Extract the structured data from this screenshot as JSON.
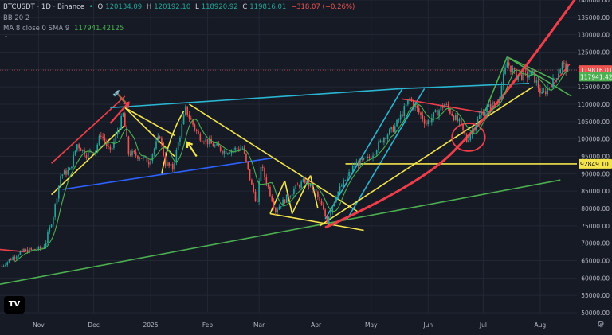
{
  "header": {
    "symbol": "BTCUSDT · 1D · Binance",
    "ohlc": {
      "o_label": "O",
      "o": "120134.09",
      "h_label": "H",
      "h": "120192.10",
      "l_label": "L",
      "l": "118920.92",
      "c_label": "C",
      "c": "119816.01",
      "change": "−318.07 (−0.26%)"
    },
    "bb": "BB 20 2",
    "ma": "MA 8 close 0 SMA 9",
    "ma_value": "117941.42125"
  },
  "colors": {
    "background": "#161a25",
    "grid": "#232734",
    "up": "#26a69a",
    "down": "#ef5350",
    "ma_line": "#4caf50",
    "yellow": "#f4e44c",
    "red": "#ef3e4a",
    "cyan": "#2ab5d1",
    "blue": "#2d62ff",
    "green": "#4caf50"
  },
  "chart_data": {
    "type": "candlestick",
    "y_axis": {
      "ticks": [
        50000,
        55000,
        60000,
        65000,
        70000,
        75000,
        80000,
        85000,
        90000,
        95000,
        100000,
        105000,
        110000,
        115000,
        120000,
        125000,
        130000,
        135000,
        140000
      ],
      "tick_labels": [
        "50000.00",
        "55000.00",
        "60000.00",
        "65000.00",
        "70000.00",
        "75000.00",
        "80000.00",
        "85000.00",
        "90000.00",
        "95000.00",
        "100000.00",
        "105000.00",
        "110000.00",
        "115000.00",
        "120000.00",
        "125000.00",
        "130000.00",
        "135000.00",
        "140000.00"
      ],
      "ylim": [
        50000,
        140000
      ]
    },
    "x_axis": {
      "labels": [
        "Nov",
        "Dec",
        "2025",
        "Feb",
        "Mar",
        "Apr",
        "May",
        "Jun",
        "Jul",
        "Aug"
      ],
      "dates": [
        "2024-11-01",
        "2024-12-01",
        "2025-01-01",
        "2025-02-01",
        "2025-03-01",
        "2025-04-01",
        "2025-05-01",
        "2025-06-01",
        "2025-07-01",
        "2025-08-01"
      ],
      "xlim": [
        "2024-10-11",
        "2025-08-21"
      ]
    },
    "price_anchors": [
      [
        "2024-10-12",
        63500
      ],
      [
        "2024-10-22",
        67500
      ],
      [
        "2024-11-03",
        68500
      ],
      [
        "2024-11-05",
        70500
      ],
      [
        "2024-11-09",
        78000
      ],
      [
        "2024-11-13",
        89500
      ],
      [
        "2024-11-18",
        91000
      ],
      [
        "2024-11-22",
        98500
      ],
      [
        "2024-11-27",
        95500
      ],
      [
        "2024-12-02",
        97000
      ],
      [
        "2024-12-05",
        101500
      ],
      [
        "2024-12-10",
        96000
      ],
      [
        "2024-12-17",
        107000
      ],
      [
        "2024-12-20",
        96000
      ],
      [
        "2024-12-26",
        95000
      ],
      [
        "2024-12-31",
        93500
      ],
      [
        "2025-01-06",
        101000
      ],
      [
        "2025-01-09",
        93000
      ],
      [
        "2025-01-13",
        91500
      ],
      [
        "2025-01-20",
        108500
      ],
      [
        "2025-01-27",
        101000
      ],
      [
        "2025-02-03",
        98500
      ],
      [
        "2025-02-10",
        96500
      ],
      [
        "2025-02-20",
        97500
      ],
      [
        "2025-02-25",
        86500
      ],
      [
        "2025-02-28",
        81500
      ],
      [
        "2025-03-02",
        92500
      ],
      [
        "2025-03-10",
        79500
      ],
      [
        "2025-03-20",
        85500
      ],
      [
        "2025-03-26",
        88000
      ],
      [
        "2025-04-01",
        84500
      ],
      [
        "2025-04-07",
        76500
      ],
      [
        "2025-04-12",
        84000
      ],
      [
        "2025-04-22",
        92500
      ],
      [
        "2025-04-30",
        94500
      ],
      [
        "2025-05-08",
        100500
      ],
      [
        "2025-05-14",
        103500
      ],
      [
        "2025-05-22",
        111500
      ],
      [
        "2025-05-31",
        104500
      ],
      [
        "2025-06-10",
        110000
      ],
      [
        "2025-06-18",
        104500
      ],
      [
        "2025-06-22",
        99500
      ],
      [
        "2025-06-30",
        107500
      ],
      [
        "2025-07-09",
        111000
      ],
      [
        "2025-07-14",
        122000
      ],
      [
        "2025-07-19",
        118000
      ],
      [
        "2025-07-28",
        118500
      ],
      [
        "2025-08-02",
        112500
      ],
      [
        "2025-08-08",
        116500
      ],
      [
        "2025-08-13",
        121500
      ],
      [
        "2025-08-16",
        119816
      ]
    ],
    "moving_average": {
      "name": "MA 8 close 0 SMA 9",
      "last_value": 117941.42125
    },
    "horizontal_levels": [
      {
        "value": 119816.01,
        "label": "119816.01",
        "color": "#ef5350"
      },
      {
        "value": 117941.42,
        "label": "117941.421",
        "color": "#4caf50"
      },
      {
        "value": 92849.1,
        "label": "92849.10",
        "color": "#f4e44c"
      }
    ],
    "drawings": [
      {
        "kind": "line",
        "color": "#ef3e4a",
        "points": [
          [
            "2024-10-11",
            68200
          ],
          [
            "2024-10-25",
            67500
          ]
        ]
      },
      {
        "kind": "line",
        "color": "#4caf50",
        "points": [
          [
            "2024-10-11",
            58200
          ],
          [
            "2025-08-12",
            88200
          ]
        ]
      },
      {
        "kind": "line",
        "color": "#ef3e4a",
        "points": [
          [
            "2024-11-08",
            93000
          ],
          [
            "2024-12-18",
            112300
          ]
        ]
      },
      {
        "kind": "line",
        "color": "#f4e44c",
        "points": [
          [
            "2024-11-08",
            84000
          ],
          [
            "2024-12-18",
            104000
          ]
        ]
      },
      {
        "kind": "line",
        "color": "#2ab5d1",
        "points": [
          [
            "2024-12-10",
            109000
          ],
          [
            "2025-05-18",
            114500
          ]
        ]
      },
      {
        "kind": "line",
        "color": "#2ab5d1",
        "points": [
          [
            "2025-05-18",
            114500
          ],
          [
            "2025-07-26",
            116000
          ]
        ]
      },
      {
        "kind": "line",
        "color": "#2d62ff",
        "points": [
          [
            "2024-11-14",
            85500
          ],
          [
            "2025-03-08",
            94500
          ]
        ]
      },
      {
        "kind": "line",
        "color": "#f4e44c",
        "points": [
          [
            "2024-12-18",
            109000
          ],
          [
            "2025-01-14",
            101000
          ]
        ]
      },
      {
        "kind": "line",
        "color": "#f4e44c",
        "points": [
          [
            "2024-12-18",
            109000
          ],
          [
            "2025-01-14",
            95000
          ]
        ]
      },
      {
        "kind": "line",
        "color": "#f4e44c",
        "points": [
          [
            "2025-01-22",
            110000
          ],
          [
            "2025-04-24",
            79000
          ]
        ]
      },
      {
        "kind": "line",
        "color": "#f4e44c",
        "points": [
          [
            "2025-03-07",
            78500
          ],
          [
            "2025-04-27",
            73700
          ]
        ]
      },
      {
        "kind": "line",
        "color": "#f4e44c",
        "points": [
          [
            "2025-03-07",
            78500
          ],
          [
            "2025-03-15",
            88000
          ]
        ]
      },
      {
        "kind": "line",
        "color": "#f4e44c",
        "points": [
          [
            "2025-03-15",
            88000
          ],
          [
            "2025-03-19",
            78500
          ]
        ]
      },
      {
        "kind": "line",
        "color": "#f4e44c",
        "points": [
          [
            "2025-03-19",
            78500
          ],
          [
            "2025-03-29",
            89500
          ]
        ]
      },
      {
        "kind": "line",
        "color": "#f4e44c",
        "points": [
          [
            "2025-03-29",
            89500
          ],
          [
            "2025-04-02",
            80000
          ]
        ]
      },
      {
        "kind": "line",
        "color": "#2ab5d1",
        "points": [
          [
            "2025-04-06",
            77000
          ],
          [
            "2025-05-18",
            114500
          ]
        ]
      },
      {
        "kind": "line",
        "color": "#2ab5d1",
        "points": [
          [
            "2025-04-18",
            77000
          ],
          [
            "2025-05-30",
            114500
          ]
        ]
      },
      {
        "kind": "line",
        "color": "#f4e44c",
        "points": [
          [
            "2025-04-03",
            75000
          ],
          [
            "2025-07-28",
            115000
          ]
        ]
      },
      {
        "kind": "line",
        "color": "#f4e44c",
        "points": [
          [
            "2025-04-17",
            92849
          ],
          [
            "2025-08-21",
            92849
          ]
        ]
      },
      {
        "kind": "line",
        "color": "#ef3e4a",
        "points": [
          [
            "2025-05-18",
            111500
          ],
          [
            "2025-07-02",
            107500
          ]
        ]
      },
      {
        "kind": "line",
        "color": "#4caf50",
        "points": [
          [
            "2025-07-02",
            108000
          ],
          [
            "2025-07-14",
            123600
          ]
        ]
      },
      {
        "kind": "line",
        "color": "#4caf50",
        "points": [
          [
            "2025-07-14",
            123600
          ],
          [
            "2025-08-09",
            117000
          ]
        ]
      },
      {
        "kind": "line",
        "color": "#4caf50",
        "points": [
          [
            "2025-07-14",
            123600
          ],
          [
            "2025-08-18",
            112300
          ]
        ]
      },
      {
        "kind": "line",
        "color": "#ef3e4a",
        "points": [
          [
            "2025-08-07",
            115000
          ],
          [
            "2025-08-17",
            121500
          ]
        ]
      },
      {
        "kind": "curve",
        "color": "#ef3e4a",
        "points": [
          [
            "2025-04-06",
            74500
          ],
          [
            "2025-05-28",
            87000
          ],
          [
            "2025-07-01",
            105000
          ],
          [
            "2025-07-30",
            125000
          ],
          [
            "2025-08-21",
            141000
          ]
        ]
      },
      {
        "kind": "circle",
        "color": "#ef3e4a",
        "center": [
          "2025-06-23",
          100500
        ],
        "radius_days": 9,
        "radius_value": 4000
      },
      {
        "kind": "arc",
        "color": "#f4e44c",
        "points": [
          [
            "2025-01-07",
            90000
          ],
          [
            "2025-01-11",
            101000
          ],
          [
            "2025-01-19",
            108000
          ]
        ]
      },
      {
        "kind": "arrow",
        "color": "#f4e44c",
        "from": [
          "2025-01-26",
          95000
        ],
        "to": [
          "2025-01-21",
          99000
        ]
      },
      {
        "kind": "arrow",
        "color": "#ef3e4a",
        "from": [
          "2024-12-10",
          104500
        ],
        "to": [
          "2024-12-20",
          110500
        ]
      },
      {
        "kind": "emoji",
        "label": "hammer",
        "glyph": "🔨",
        "at": [
          "2024-12-15",
          111000
        ]
      }
    ]
  }
}
